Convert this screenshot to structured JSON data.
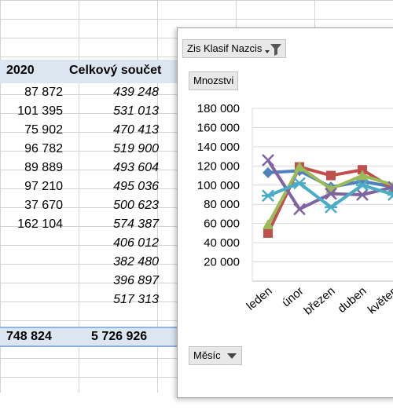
{
  "table": {
    "header": {
      "year": "2020",
      "total": "Celkový součet"
    },
    "rows": [
      {
        "year_value": "87 872",
        "total_value": "439 248"
      },
      {
        "year_value": "101 395",
        "total_value": "531 013"
      },
      {
        "year_value": "75 902",
        "total_value": "470 413"
      },
      {
        "year_value": "96 782",
        "total_value": "519 900"
      },
      {
        "year_value": "89 889",
        "total_value": "493 604"
      },
      {
        "year_value": "97 210",
        "total_value": "495 036"
      },
      {
        "year_value": "37 670",
        "total_value": "500 623"
      },
      {
        "year_value": "162 104",
        "total_value": "574 387"
      },
      {
        "year_value": "",
        "total_value": "406 012"
      },
      {
        "year_value": "",
        "total_value": "382 480"
      },
      {
        "year_value": "",
        "total_value": "396 897"
      },
      {
        "year_value": "",
        "total_value": "517 313"
      }
    ],
    "grand_total": {
      "year_value": "748 824",
      "total_value": "5 726 926"
    }
  },
  "chart": {
    "filter_button_label": "Zis Klasif Nazcis",
    "value_button_label": "Mnozstvi",
    "axis_button_label": "Měsíc",
    "filter_icon": "funnel-icon",
    "dropdown_icon": "triangle-down-icon"
  },
  "chart_data": {
    "type": "line",
    "categories": [
      "leden",
      "únor",
      "březen",
      "duben",
      "květen"
    ],
    "ylim": [
      0,
      180000
    ],
    "yticks": [
      "180 000",
      "160 000",
      "140 000",
      "120 000",
      "100 000",
      "80 000",
      "60 000",
      "40 000",
      "20 000"
    ],
    "grid": true,
    "series": [
      {
        "color": "#4f81bd",
        "marker": "diamond",
        "values": [
          113000,
          115000,
          98000,
          104000,
          98000
        ]
      },
      {
        "color": "#c0504d",
        "marker": "square",
        "values": [
          50000,
          119000,
          110000,
          116000,
          96000
        ]
      },
      {
        "color": "#9bbb59",
        "marker": "triangle",
        "values": [
          59000,
          119000,
          96000,
          110000,
          100000
        ]
      },
      {
        "color": "#8064a2",
        "marker": "x",
        "values": [
          126000,
          75000,
          91000,
          90000,
          98000
        ]
      },
      {
        "color": "#4bacc6",
        "marker": "star",
        "values": [
          89000,
          102000,
          77000,
          100000,
          90000
        ]
      }
    ]
  }
}
